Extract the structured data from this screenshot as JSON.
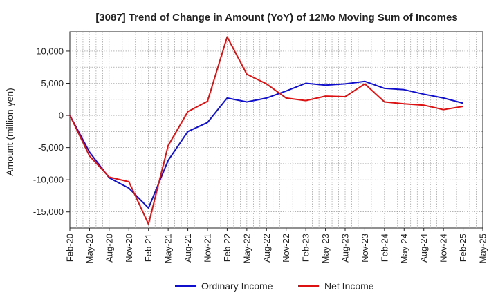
{
  "chart_data": {
    "type": "line",
    "title": "[3087]  Trend of Change in Amount (YoY) of 12Mo Moving Sum of Incomes",
    "xlabel": "",
    "ylabel": "Amount (million yen)",
    "ylim": [
      -17500,
      13000
    ],
    "yticks": [
      10000,
      5000,
      0,
      -5000,
      -10000,
      -15000
    ],
    "ytick_labels": [
      "10,000",
      "5,000",
      "0",
      "-5,000",
      "-10,000",
      "-15,000"
    ],
    "grid": true,
    "legend_position": "bottom-center",
    "x": [
      "Feb-20",
      "May-20",
      "Aug-20",
      "Nov-20",
      "Feb-21",
      "May-21",
      "Aug-21",
      "Nov-21",
      "Feb-22",
      "May-22",
      "Aug-22",
      "Nov-22",
      "Feb-23",
      "May-23",
      "Aug-23",
      "Nov-23",
      "Feb-24",
      "May-24",
      "Aug-24",
      "Nov-24",
      "Feb-25",
      "May-25"
    ],
    "series": [
      {
        "name": "Ordinary Income",
        "color": "#1010cc",
        "values": [
          0,
          -5700,
          -9700,
          -11300,
          -14400,
          -7000,
          -2500,
          -1100,
          2700,
          2100,
          2700,
          3800,
          5000,
          4700,
          4900,
          5300,
          4200,
          4000,
          3300,
          2700,
          1900,
          null
        ]
      },
      {
        "name": "Net Income",
        "color": "#dd1111",
        "values": [
          0,
          -6300,
          -9600,
          -10300,
          -16900,
          -4700,
          600,
          2200,
          12200,
          6400,
          4900,
          2700,
          2300,
          3000,
          2900,
          4900,
          2100,
          1800,
          1600,
          900,
          1400,
          null
        ]
      }
    ]
  }
}
